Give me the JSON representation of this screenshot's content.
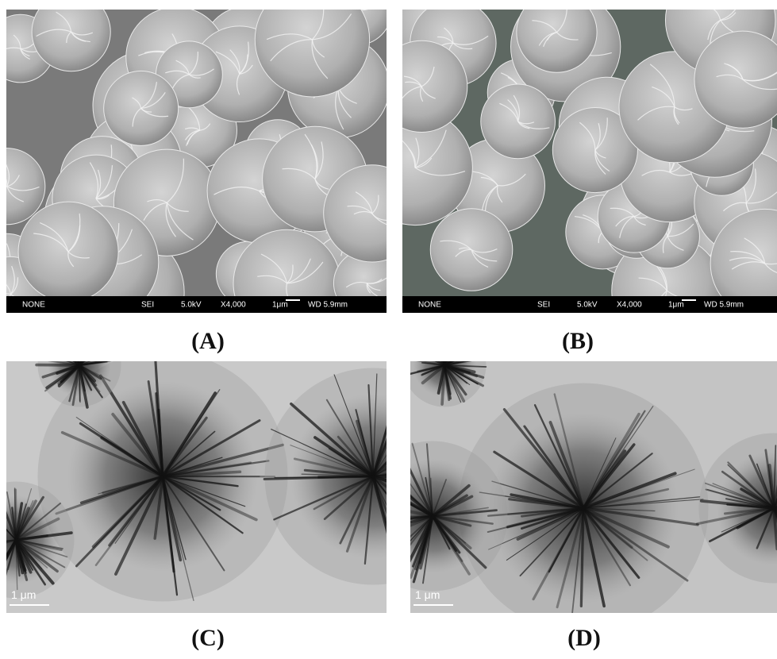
{
  "figure": {
    "panels": [
      {
        "label": "(A)",
        "info_bar": [
          "NONE",
          "SEI",
          "5.0kV",
          "X4,000",
          "1μm",
          "WD 5.9mm"
        ]
      },
      {
        "label": "(B)",
        "info_bar": [
          "NONE",
          "SEI",
          "5.0kV",
          "X4,000",
          "1μm",
          "WD 5.9mm"
        ]
      },
      {
        "label": "(C)",
        "scale_bar": "1 μm"
      },
      {
        "label": "(D)",
        "scale_bar": "1 μm"
      }
    ]
  }
}
